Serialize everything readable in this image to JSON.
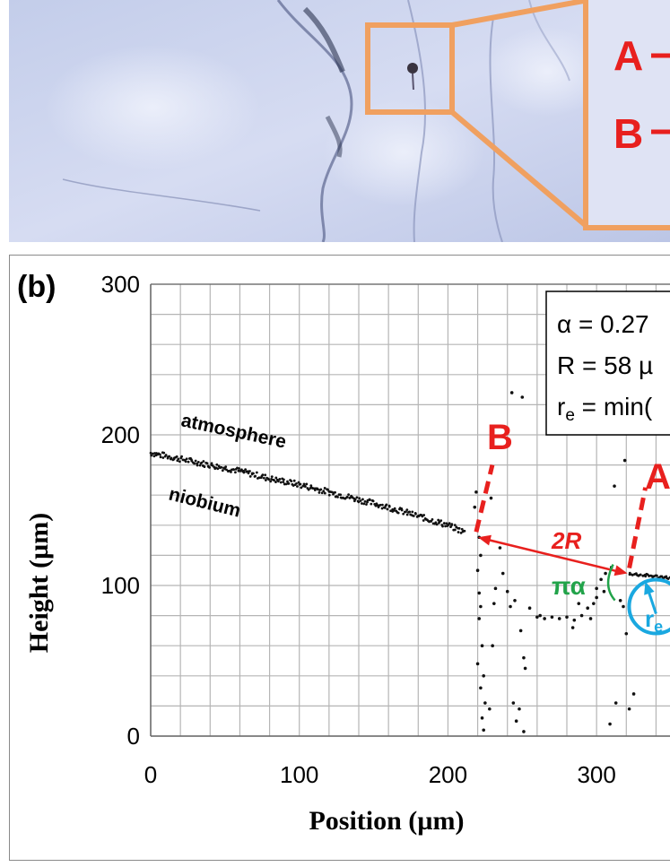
{
  "photo": {
    "zoom_labels": [
      "A",
      "B"
    ]
  },
  "chart_data": {
    "type": "scatter",
    "panel_label": "(b)",
    "title": "",
    "xlabel": "Position (µm)",
    "ylabel": "Height (µm)",
    "xlim": [
      0,
      350
    ],
    "ylim": [
      0,
      300
    ],
    "x_ticks": [
      0,
      100,
      200,
      300
    ],
    "y_ticks": [
      0,
      100,
      200,
      300
    ],
    "grid": true,
    "region_labels": [
      "atmosphere",
      "niobium"
    ],
    "annotations": {
      "point_a": "A",
      "point_b": "B",
      "gap": "2R",
      "angle": "πα",
      "radius": "r",
      "radius_sub": "e"
    },
    "info_box": [
      {
        "text": "α = 0.27",
        "sub": "",
        "rest": ""
      },
      {
        "text": "R = 58 µ",
        "sub": "",
        "rest": ""
      },
      {
        "text": "r",
        "sub": "e",
        "rest": " = min("
      }
    ],
    "surface_a": [
      [
        0,
        188
      ],
      [
        20,
        184
      ],
      [
        40,
        180
      ],
      [
        60,
        176
      ],
      [
        80,
        171
      ],
      [
        100,
        167
      ],
      [
        120,
        162
      ],
      [
        140,
        157
      ],
      [
        160,
        152
      ],
      [
        180,
        146
      ],
      [
        200,
        140
      ],
      [
        212,
        135
      ]
    ],
    "surface_b": [
      [
        322,
        108
      ],
      [
        330,
        107
      ],
      [
        340,
        106
      ],
      [
        350,
        105
      ]
    ],
    "noise_points": [
      [
        218,
        152
      ],
      [
        219,
        162
      ],
      [
        221,
        132
      ],
      [
        222,
        120
      ],
      [
        220,
        110
      ],
      [
        221,
        95
      ],
      [
        222,
        86
      ],
      [
        221,
        78
      ],
      [
        223,
        60
      ],
      [
        220,
        48
      ],
      [
        224,
        40
      ],
      [
        222,
        32
      ],
      [
        225,
        22
      ],
      [
        223,
        12
      ],
      [
        224,
        4
      ],
      [
        228,
        18
      ],
      [
        230,
        60
      ],
      [
        231,
        88
      ],
      [
        232,
        98
      ],
      [
        229,
        158
      ],
      [
        235,
        125
      ],
      [
        237,
        108
      ],
      [
        240,
        96
      ],
      [
        242,
        86
      ],
      [
        245,
        90
      ],
      [
        243,
        228
      ],
      [
        250,
        225
      ],
      [
        249,
        70
      ],
      [
        251,
        52
      ],
      [
        252,
        45
      ],
      [
        244,
        22
      ],
      [
        248,
        18
      ],
      [
        246,
        10
      ],
      [
        251,
        3
      ],
      [
        255,
        85
      ],
      [
        260,
        79
      ],
      [
        262,
        80
      ],
      [
        265,
        78
      ],
      [
        270,
        79
      ],
      [
        275,
        78
      ],
      [
        280,
        79
      ],
      [
        285,
        77
      ],
      [
        290,
        80
      ],
      [
        294,
        85
      ],
      [
        298,
        88
      ],
      [
        300,
        98
      ],
      [
        303,
        104
      ],
      [
        306,
        108
      ],
      [
        310,
        112
      ],
      [
        312,
        166
      ],
      [
        313,
        22
      ],
      [
        316,
        90
      ],
      [
        318,
        86
      ],
      [
        319,
        183
      ],
      [
        320,
        68
      ],
      [
        322,
        18
      ],
      [
        309,
        8
      ],
      [
        325,
        28
      ],
      [
        300,
        92
      ],
      [
        296,
        78
      ],
      [
        305,
        96
      ],
      [
        288,
        88
      ],
      [
        284,
        72
      ]
    ],
    "info_values": {
      "alpha": 0.27,
      "R_um": 58
    }
  }
}
